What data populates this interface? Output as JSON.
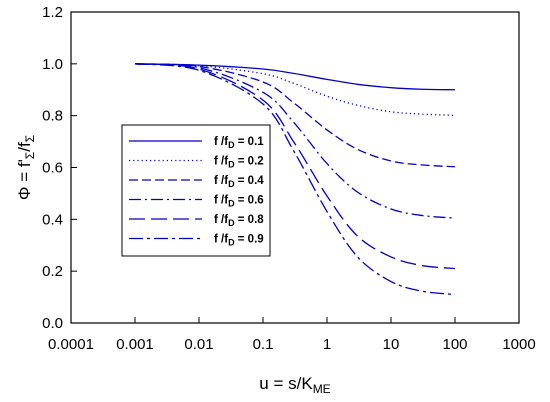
{
  "chart_data": {
    "type": "line",
    "title": "",
    "xlabel": "u = s/K_ME",
    "ylabel": "Φ = f'_Σ/f_Σ",
    "x_scale": "log",
    "xlim": [
      0.0001,
      1000
    ],
    "ylim": [
      0.0,
      1.2
    ],
    "x_ticks": [
      0.0001,
      0.001,
      0.01,
      0.1,
      1,
      10,
      100,
      1000
    ],
    "x_tick_labels": [
      "0.0001",
      "0.001",
      "0.01",
      "0.1",
      "1",
      "10",
      "100",
      "1000"
    ],
    "y_ticks": [
      0.0,
      0.2,
      0.4,
      0.6,
      0.8,
      1.0,
      1.2
    ],
    "y_tick_labels": [
      "0.0",
      "0.2",
      "0.4",
      "0.6",
      "0.8",
      "1.0",
      "1.2"
    ],
    "grid": false,
    "legend_position": "left-center",
    "line_color": "#0000cc",
    "x": [
      0.001,
      0.01,
      0.1,
      0.3,
      1,
      3,
      10,
      30,
      100
    ],
    "series": [
      {
        "name": "f /f_D = 0.1",
        "label_main": "f /f",
        "label_sub": "D",
        "label_value": " = 0.1",
        "dash": "solid",
        "values": [
          1.0,
          0.995,
          0.98,
          0.963,
          0.94,
          0.921,
          0.908,
          0.902,
          0.9
        ]
      },
      {
        "name": "f /f_D = 0.2",
        "label_main": "f /f",
        "label_sub": "D",
        "label_value": " = 0.2",
        "dash": "dotted",
        "values": [
          1.0,
          0.993,
          0.962,
          0.925,
          0.875,
          0.84,
          0.815,
          0.806,
          0.801
        ]
      },
      {
        "name": "f /f_D = 0.4",
        "label_main": "f /f",
        "label_sub": "D",
        "label_value": " = 0.4",
        "dash": "dashed",
        "values": [
          1.0,
          0.99,
          0.93,
          0.85,
          0.745,
          0.67,
          0.625,
          0.61,
          0.603
        ]
      },
      {
        "name": "f /f_D = 0.6",
        "label_main": "f /f",
        "label_sub": "D",
        "label_value": " = 0.6",
        "dash": "dashdot",
        "values": [
          1.0,
          0.985,
          0.89,
          0.775,
          0.615,
          0.505,
          0.44,
          0.415,
          0.405
        ]
      },
      {
        "name": "f /f_D = 0.8",
        "label_main": "f /f",
        "label_sub": "D",
        "label_value": " = 0.8",
        "dash": "longdash",
        "values": [
          1.0,
          0.98,
          0.86,
          0.7,
          0.49,
          0.335,
          0.255,
          0.222,
          0.21
        ]
      },
      {
        "name": "f /f_D = 0.9",
        "label_main": "f /f",
        "label_sub": "D",
        "label_value": " = 0.9",
        "dash": "longdashdot",
        "values": [
          1.0,
          0.975,
          0.845,
          0.665,
          0.43,
          0.255,
          0.16,
          0.123,
          0.11
        ]
      }
    ]
  }
}
